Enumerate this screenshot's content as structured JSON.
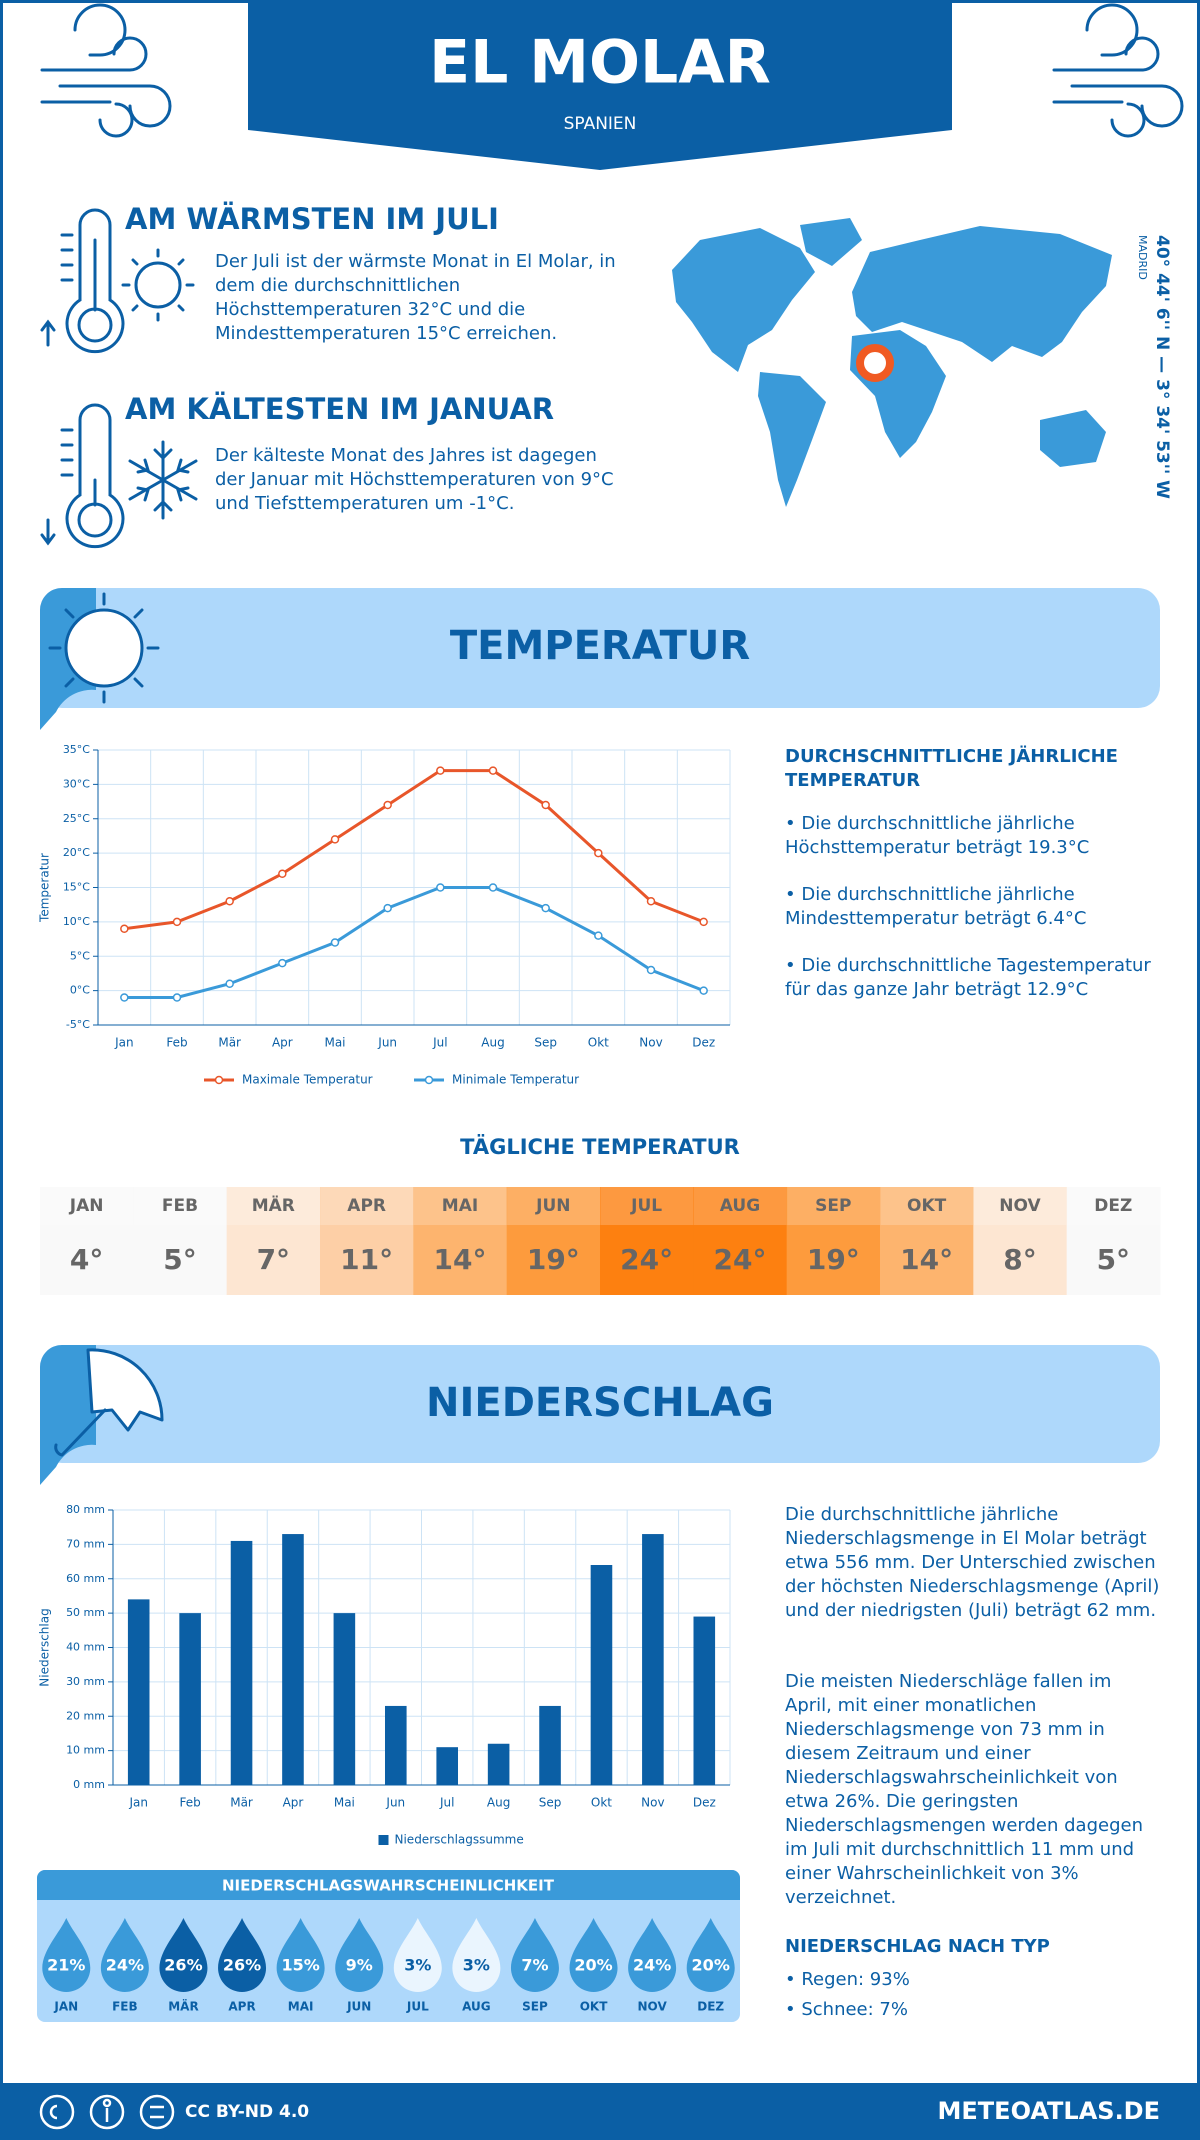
{
  "header": {
    "title": "EL MOLAR",
    "subtitle": "SPANIEN"
  },
  "facts": [
    {
      "heading": "AM WÄRMSTEN IM JULI",
      "text": "Der Juli ist der wärmste Monat in El Molar, in dem die durchschnittlichen Höchsttemperaturen 32°C und die Mindesttemperaturen 15°C erreichen."
    },
    {
      "heading": "AM KÄLTESTEN IM JANUAR",
      "text": "Der kälteste Monat des Jahres ist dagegen der Januar mit Höchsttemperaturen von 9°C und Tiefsttemperaturen um -1°C."
    }
  ],
  "location": {
    "coordinates": "40° 44' 6'' N — 3° 34' 53'' W",
    "region": "MADRID"
  },
  "temperature_section": {
    "title": "TEMPERATUR"
  },
  "chart_data": [
    {
      "type": "line",
      "y_label": "Temperatur",
      "categories": [
        "Jan",
        "Feb",
        "Mär",
        "Apr",
        "Mai",
        "Jun",
        "Jul",
        "Aug",
        "Sep",
        "Okt",
        "Nov",
        "Dez"
      ],
      "series": [
        {
          "name": "Maximale Temperatur",
          "color": "#e8562a",
          "values": [
            9,
            10,
            13,
            17,
            22,
            27,
            32,
            32,
            27,
            20,
            13,
            10
          ]
        },
        {
          "name": "Minimale Temperatur",
          "color": "#3a9ad9",
          "values": [
            -1,
            -1,
            1,
            4,
            7,
            12,
            15,
            15,
            12,
            8,
            3,
            0
          ]
        }
      ],
      "ylim": [
        -5,
        35
      ],
      "yticks": [
        {
          "value": -5,
          "label": "-5°C"
        },
        {
          "value": 0,
          "label": "0°C"
        },
        {
          "value": 5,
          "label": "5°C"
        },
        {
          "value": 10,
          "label": "10°C"
        },
        {
          "value": 15,
          "label": "15°C"
        },
        {
          "value": 20,
          "label": "20°C"
        },
        {
          "value": 25,
          "label": "25°C"
        },
        {
          "value": 30,
          "label": "30°C"
        },
        {
          "value": 35,
          "label": "35°C"
        }
      ],
      "grid": true
    },
    {
      "type": "bar",
      "y_label": "Niederschlag",
      "categories": [
        "Jan",
        "Feb",
        "Mär",
        "Apr",
        "Mai",
        "Jun",
        "Jul",
        "Aug",
        "Sep",
        "Okt",
        "Nov",
        "Dez"
      ],
      "series": [
        {
          "name": "Niederschlagssumme",
          "color": "#0b5fa5",
          "values": [
            54,
            50,
            71,
            73,
            50,
            23,
            11,
            12,
            23,
            64,
            73,
            49
          ]
        }
      ],
      "ylim": [
        0,
        80
      ],
      "yticks": [
        {
          "value": 0,
          "label": "0 mm"
        },
        {
          "value": 10,
          "label": "10 mm"
        },
        {
          "value": 20,
          "label": "20 mm"
        },
        {
          "value": 30,
          "label": "30 mm"
        },
        {
          "value": 40,
          "label": "40 mm"
        },
        {
          "value": 50,
          "label": "50 mm"
        },
        {
          "value": 60,
          "label": "60 mm"
        },
        {
          "value": 70,
          "label": "70 mm"
        },
        {
          "value": 80,
          "label": "80 mm"
        }
      ],
      "grid": true
    }
  ],
  "annual_temperature": {
    "heading": "DURCHSCHNITTLICHE JÄHRLICHE TEMPERATUR",
    "items": [
      "• Die durchschnittliche jährliche Höchsttemperatur beträgt 19.3°C",
      "• Die durchschnittliche jährliche Mindesttemperatur beträgt 6.4°C",
      "• Die durchschnittliche Tagestemperatur für das ganze Jahr beträgt 12.9°C"
    ]
  },
  "daily_temperature": {
    "title": "TÄGLICHE TEMPERATUR",
    "months": [
      "JAN",
      "FEB",
      "MÄR",
      "APR",
      "MAI",
      "JUN",
      "JUL",
      "AUG",
      "SEP",
      "OKT",
      "NOV",
      "DEZ"
    ],
    "values": [
      "4°",
      "5°",
      "7°",
      "11°",
      "14°",
      "19°",
      "24°",
      "24°",
      "19°",
      "14°",
      "8°",
      "5°"
    ],
    "colors": [
      "#f9f9f9",
      "#f9f9f9",
      "#fde6d2",
      "#fdcfa6",
      "#fdb46e",
      "#fd9b3d",
      "#fd8010",
      "#fd8010",
      "#fd9b3d",
      "#fdb46e",
      "#fde6d2",
      "#f9f9f9"
    ]
  },
  "precipitation_section": {
    "title": "NIEDERSCHLAG"
  },
  "precipitation_text": {
    "paragraphs": [
      "Die durchschnittliche jährliche Niederschlagsmenge in El Molar beträgt etwa 556 mm. Der Unterschied zwischen der höchsten Niederschlagsmenge (April) und der niedrigsten (Juli) beträgt 62 mm.",
      "Die meisten Niederschläge fallen im April, mit einer monatlichen Niederschlagsmenge von 73 mm in diesem Zeitraum und einer Niederschlagswahrscheinlichkeit von etwa 26%. Die geringsten Niederschlagsmengen werden dagegen im Juli mit durchschnittlich 11 mm und einer Wahrscheinlichkeit von 3% verzeichnet."
    ],
    "type_heading": "NIEDERSCHLAG NACH TYP",
    "types": [
      "• Regen: 93%",
      "• Schnee: 7%"
    ]
  },
  "precipitation_probability": {
    "title": "NIEDERSCHLAGSWAHRSCHEINLICHKEIT",
    "months": [
      "JAN",
      "FEB",
      "MÄR",
      "APR",
      "MAI",
      "JUN",
      "JUL",
      "AUG",
      "SEP",
      "OKT",
      "NOV",
      "DEZ"
    ],
    "values": [
      "21%",
      "24%",
      "26%",
      "26%",
      "15%",
      "9%",
      "3%",
      "3%",
      "7%",
      "20%",
      "24%",
      "20%"
    ],
    "colors": [
      "#3a9ad9",
      "#3a9ad9",
      "#0b5fa5",
      "#0b5fa5",
      "#3a9ad9",
      "#3a9ad9",
      "#eaf5fe",
      "#eaf5fe",
      "#3a9ad9",
      "#3a9ad9",
      "#3a9ad9",
      "#3a9ad9"
    ],
    "text_colors": [
      "#ffffff",
      "#ffffff",
      "#ffffff",
      "#ffffff",
      "#ffffff",
      "#ffffff",
      "#0b5fa5",
      "#0b5fa5",
      "#ffffff",
      "#ffffff",
      "#ffffff",
      "#ffffff"
    ]
  },
  "footer": {
    "license": "CC BY-ND 4.0",
    "site": "METEOATLAS.DE"
  }
}
